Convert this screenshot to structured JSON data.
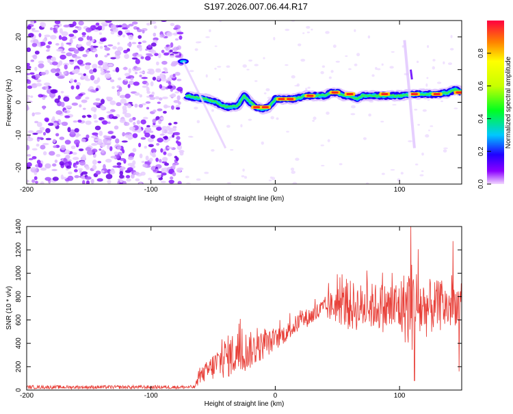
{
  "title": "S197.2026.007.06.44.R17",
  "chart_data": [
    {
      "type": "heatmap",
      "xlabel": "Height of straight line (km)",
      "ylabel": "Frequency (Hz)",
      "xlim": [
        -200,
        150
      ],
      "ylim": [
        -25,
        25
      ],
      "xticks": [
        -200,
        -100,
        0,
        100
      ],
      "yticks": [
        -20,
        -10,
        0,
        10,
        20
      ],
      "colorbar": {
        "label": "Normalized spectral amplitude",
        "ticks": [
          "0.0",
          "0.2",
          "0.4",
          "0.6",
          "0.8"
        ],
        "tick_values": [
          0.0,
          0.2,
          0.4,
          0.6,
          0.8
        ],
        "range": [
          0,
          1
        ]
      },
      "noise_region_x": [
        -200,
        -75
      ],
      "ridge": {
        "x": [
          -72,
          -65,
          -55,
          -48,
          -42,
          -38,
          -30,
          -25,
          -20,
          -15,
          -10,
          -5,
          0,
          5,
          10,
          15,
          20,
          25,
          30,
          40,
          45,
          50,
          55,
          60,
          65,
          70,
          80,
          90,
          100,
          110,
          120,
          130,
          140,
          145,
          150
        ],
        "y": [
          2,
          1.5,
          1,
          0,
          -1,
          -1.5,
          -1,
          2,
          0,
          -1.5,
          -2,
          -1.5,
          1,
          1,
          1,
          1,
          1.5,
          2,
          2,
          2,
          3,
          3,
          2,
          2,
          1,
          2,
          2,
          2,
          2,
          2.5,
          2.5,
          2.5,
          3,
          4,
          3
        ]
      },
      "ridge_peaks": [
        {
          "x": -15,
          "y": -1.5
        },
        {
          "x": -8,
          "y": -1.5
        },
        {
          "x": 5,
          "y": 1
        },
        {
          "x": 12,
          "y": 1
        },
        {
          "x": 28,
          "y": 2
        },
        {
          "x": 48,
          "y": 3
        },
        {
          "x": 60,
          "y": 2.5
        },
        {
          "x": 88,
          "y": 2.5
        },
        {
          "x": 112,
          "y": 2.5
        },
        {
          "x": 130,
          "y": 2.5
        },
        {
          "x": 148,
          "y": 3
        }
      ],
      "side_features": [
        {
          "x": -74,
          "y": 12.5
        },
        {
          "x": 107,
          "y": 17
        }
      ]
    },
    {
      "type": "line",
      "xlabel": "Height of straight line (km)",
      "ylabel": "SNR (10 * v/v)",
      "xlim": [
        -200,
        150
      ],
      "ylim": [
        0,
        1400
      ],
      "xticks": [
        -200,
        -100,
        0,
        100
      ],
      "yticks": [
        0,
        200,
        400,
        600,
        800,
        1000,
        1200,
        1400
      ],
      "color": "#e8413a",
      "envelope": {
        "x": [
          -200,
          -65,
          -60,
          -50,
          -40,
          -30,
          -20,
          -10,
          0,
          10,
          20,
          30,
          40,
          50,
          60,
          70,
          80,
          90,
          100,
          110,
          120,
          130,
          140,
          150
        ],
        "mean": [
          25,
          25,
          120,
          200,
          280,
          320,
          340,
          380,
          430,
          500,
          590,
          640,
          700,
          730,
          720,
          710,
          720,
          700,
          710,
          720,
          700,
          720,
          710,
          760
        ],
        "spread": [
          15,
          15,
          60,
          120,
          180,
          200,
          160,
          120,
          90,
          80,
          80,
          80,
          100,
          160,
          220,
          200,
          200,
          220,
          250,
          400,
          260,
          220,
          200,
          160
        ]
      },
      "spikes": [
        {
          "x": 109,
          "y": 1400
        },
        {
          "x": 143,
          "y": 1275
        },
        {
          "x": 112,
          "y": 80
        },
        {
          "x": 148,
          "y": 160
        }
      ]
    }
  ]
}
